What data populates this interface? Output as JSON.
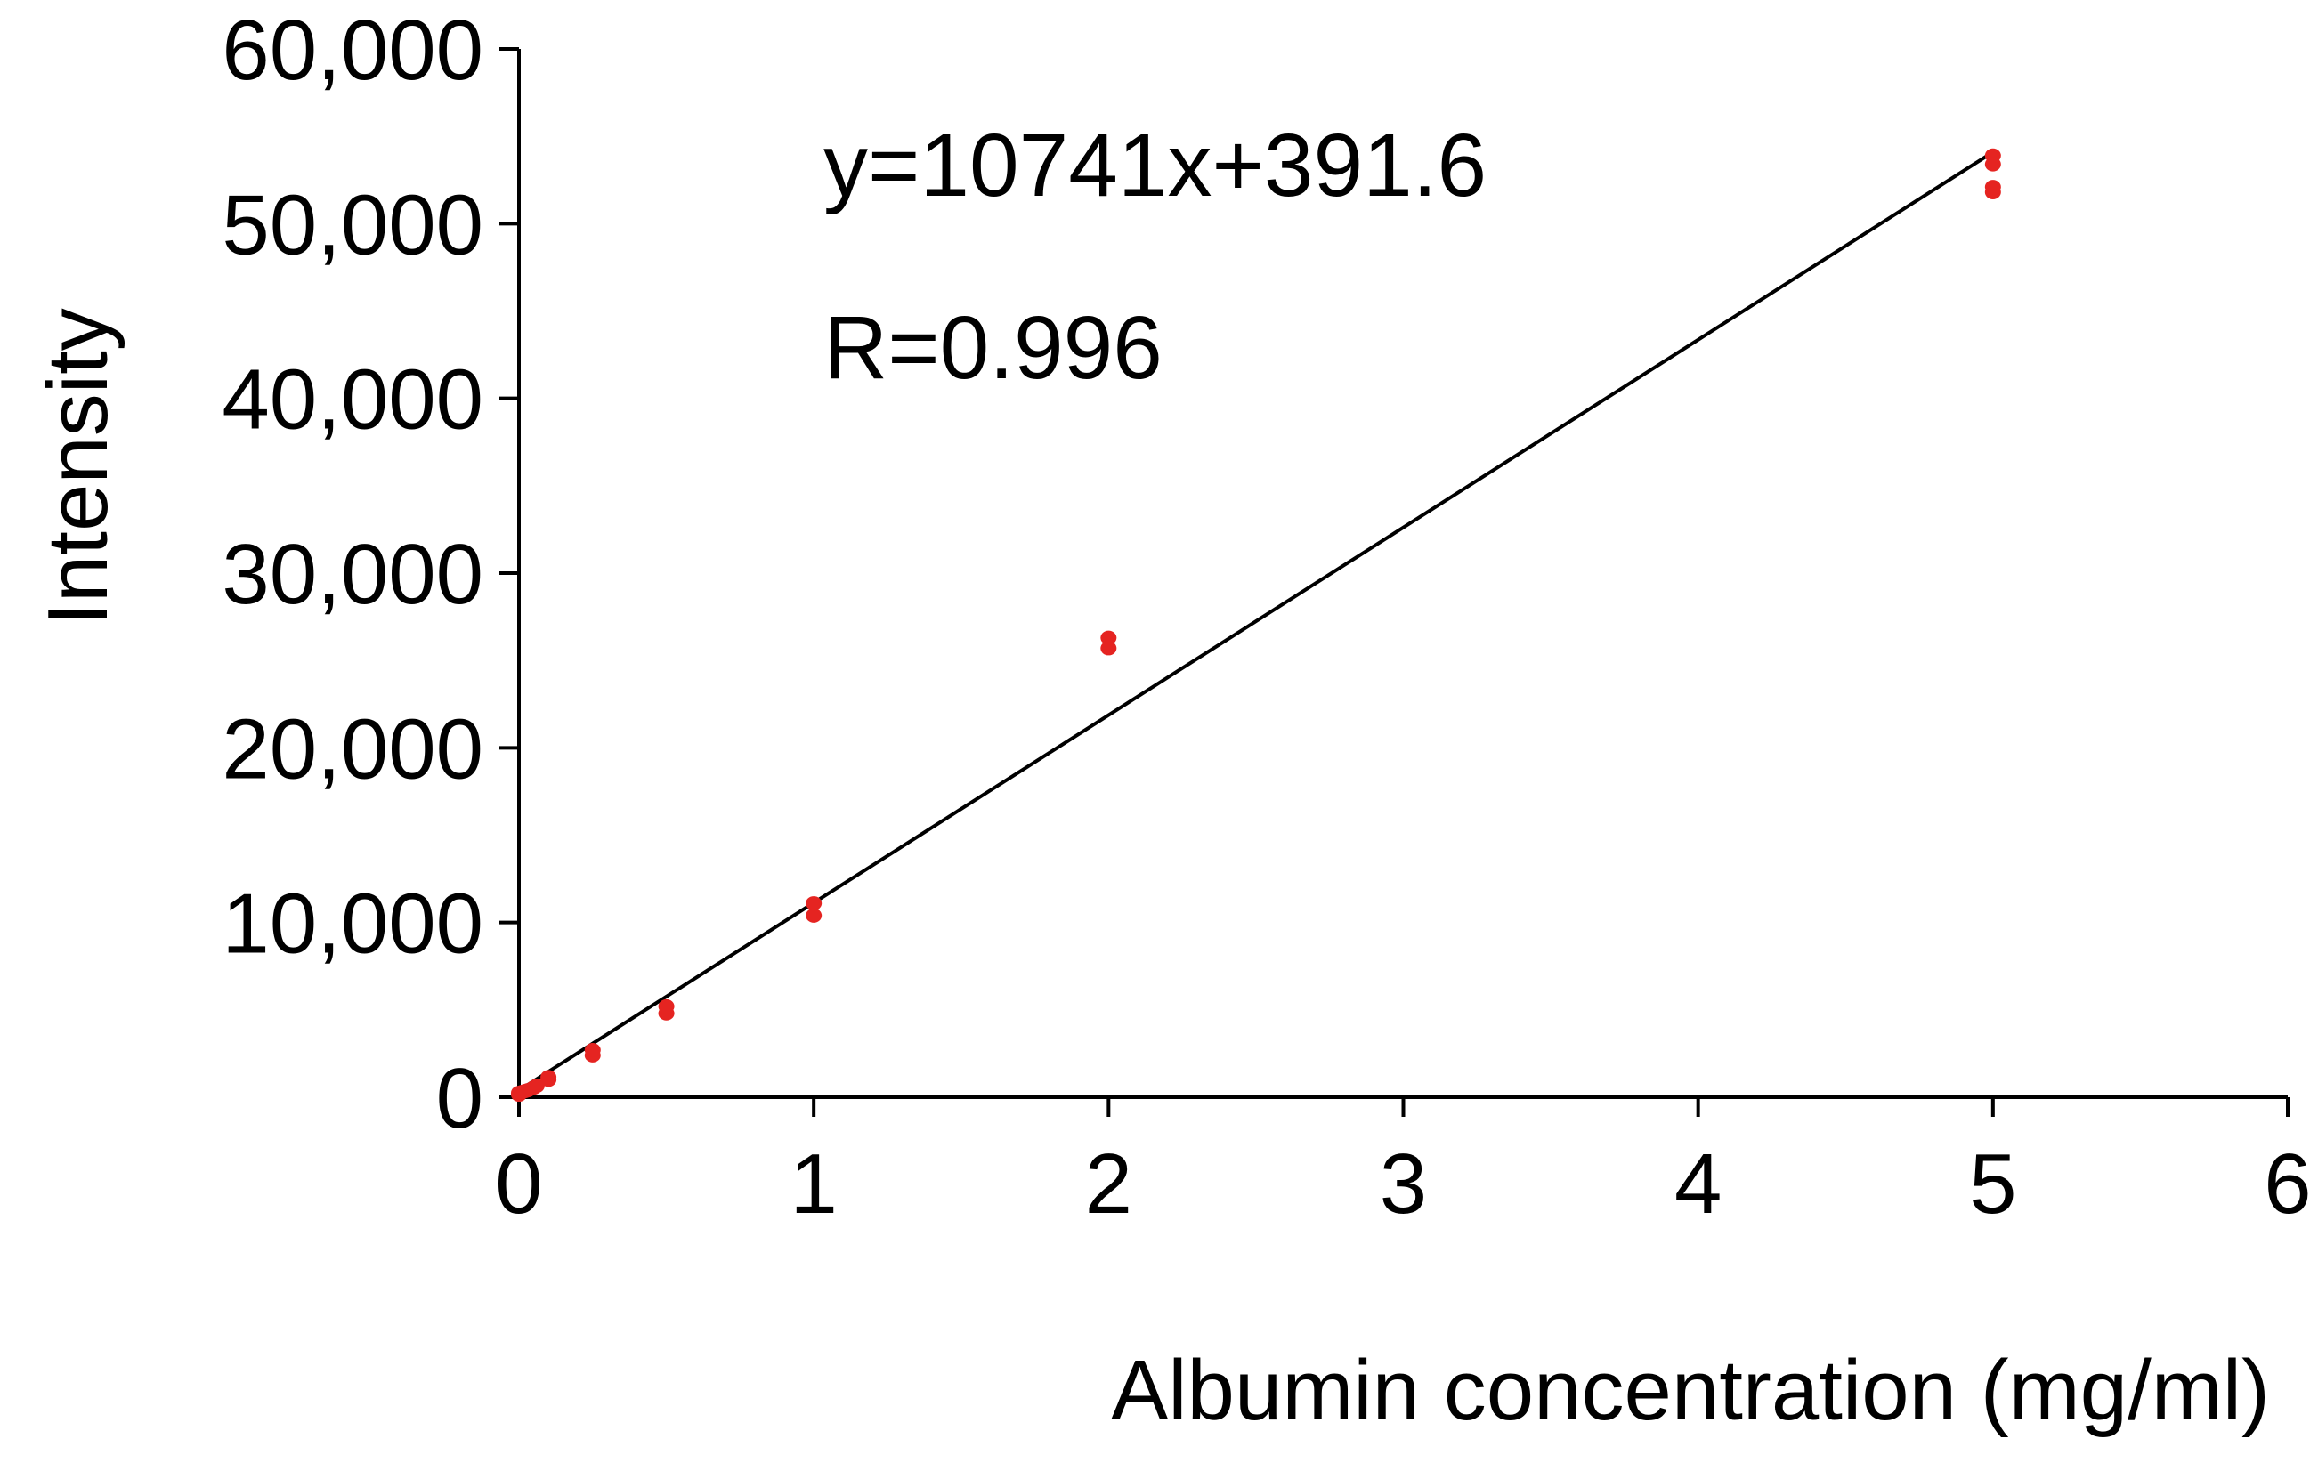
{
  "chart_data": {
    "type": "scatter",
    "xlabel": "Albumin concentration (mg/ml)",
    "ylabel": "Intensity",
    "xlim": [
      0,
      6
    ],
    "ylim": [
      0,
      60000
    ],
    "x_ticks": [
      {
        "value": 0,
        "label": "0"
      },
      {
        "value": 1,
        "label": "1"
      },
      {
        "value": 2,
        "label": "2"
      },
      {
        "value": 3,
        "label": "3"
      },
      {
        "value": 4,
        "label": "4"
      },
      {
        "value": 5,
        "label": "5"
      },
      {
        "value": 6,
        "label": "6"
      }
    ],
    "y_ticks": [
      {
        "value": 0,
        "label": "0"
      },
      {
        "value": 10000,
        "label": "10,000"
      },
      {
        "value": 20000,
        "label": "20,000"
      },
      {
        "value": 30000,
        "label": "30,000"
      },
      {
        "value": 40000,
        "label": "40,000"
      },
      {
        "value": 50000,
        "label": "50,000"
      },
      {
        "value": 60000,
        "label": "60,000"
      }
    ],
    "grid": false,
    "legend": "none",
    "point_color": "#e52421",
    "line_color": "#000000",
    "series": [
      {
        "points": [
          {
            "x": 0.0,
            "y": 150
          },
          {
            "x": 0.0,
            "y": 250
          },
          {
            "x": 0.01,
            "y": 300
          },
          {
            "x": 0.02,
            "y": 350
          },
          {
            "x": 0.03,
            "y": 400
          },
          {
            "x": 0.05,
            "y": 550
          },
          {
            "x": 0.06,
            "y": 650
          },
          {
            "x": 0.1,
            "y": 1000
          },
          {
            "x": 0.1,
            "y": 1150
          },
          {
            "x": 0.25,
            "y": 2400
          },
          {
            "x": 0.25,
            "y": 2700
          },
          {
            "x": 0.5,
            "y": 4800
          },
          {
            "x": 0.5,
            "y": 5200
          },
          {
            "x": 1.0,
            "y": 10400
          },
          {
            "x": 1.0,
            "y": 11100
          },
          {
            "x": 2.0,
            "y": 25700
          },
          {
            "x": 2.0,
            "y": 26300
          },
          {
            "x": 5.0,
            "y": 51800
          },
          {
            "x": 5.0,
            "y": 52100
          },
          {
            "x": 5.0,
            "y": 53400
          },
          {
            "x": 5.0,
            "y": 53900
          }
        ]
      }
    ],
    "fit": {
      "slope": 10741,
      "intercept": 391.6,
      "x_range": [
        0,
        5
      ],
      "equation": "y=10741x+391.6",
      "r_label": "R=0.996"
    }
  }
}
